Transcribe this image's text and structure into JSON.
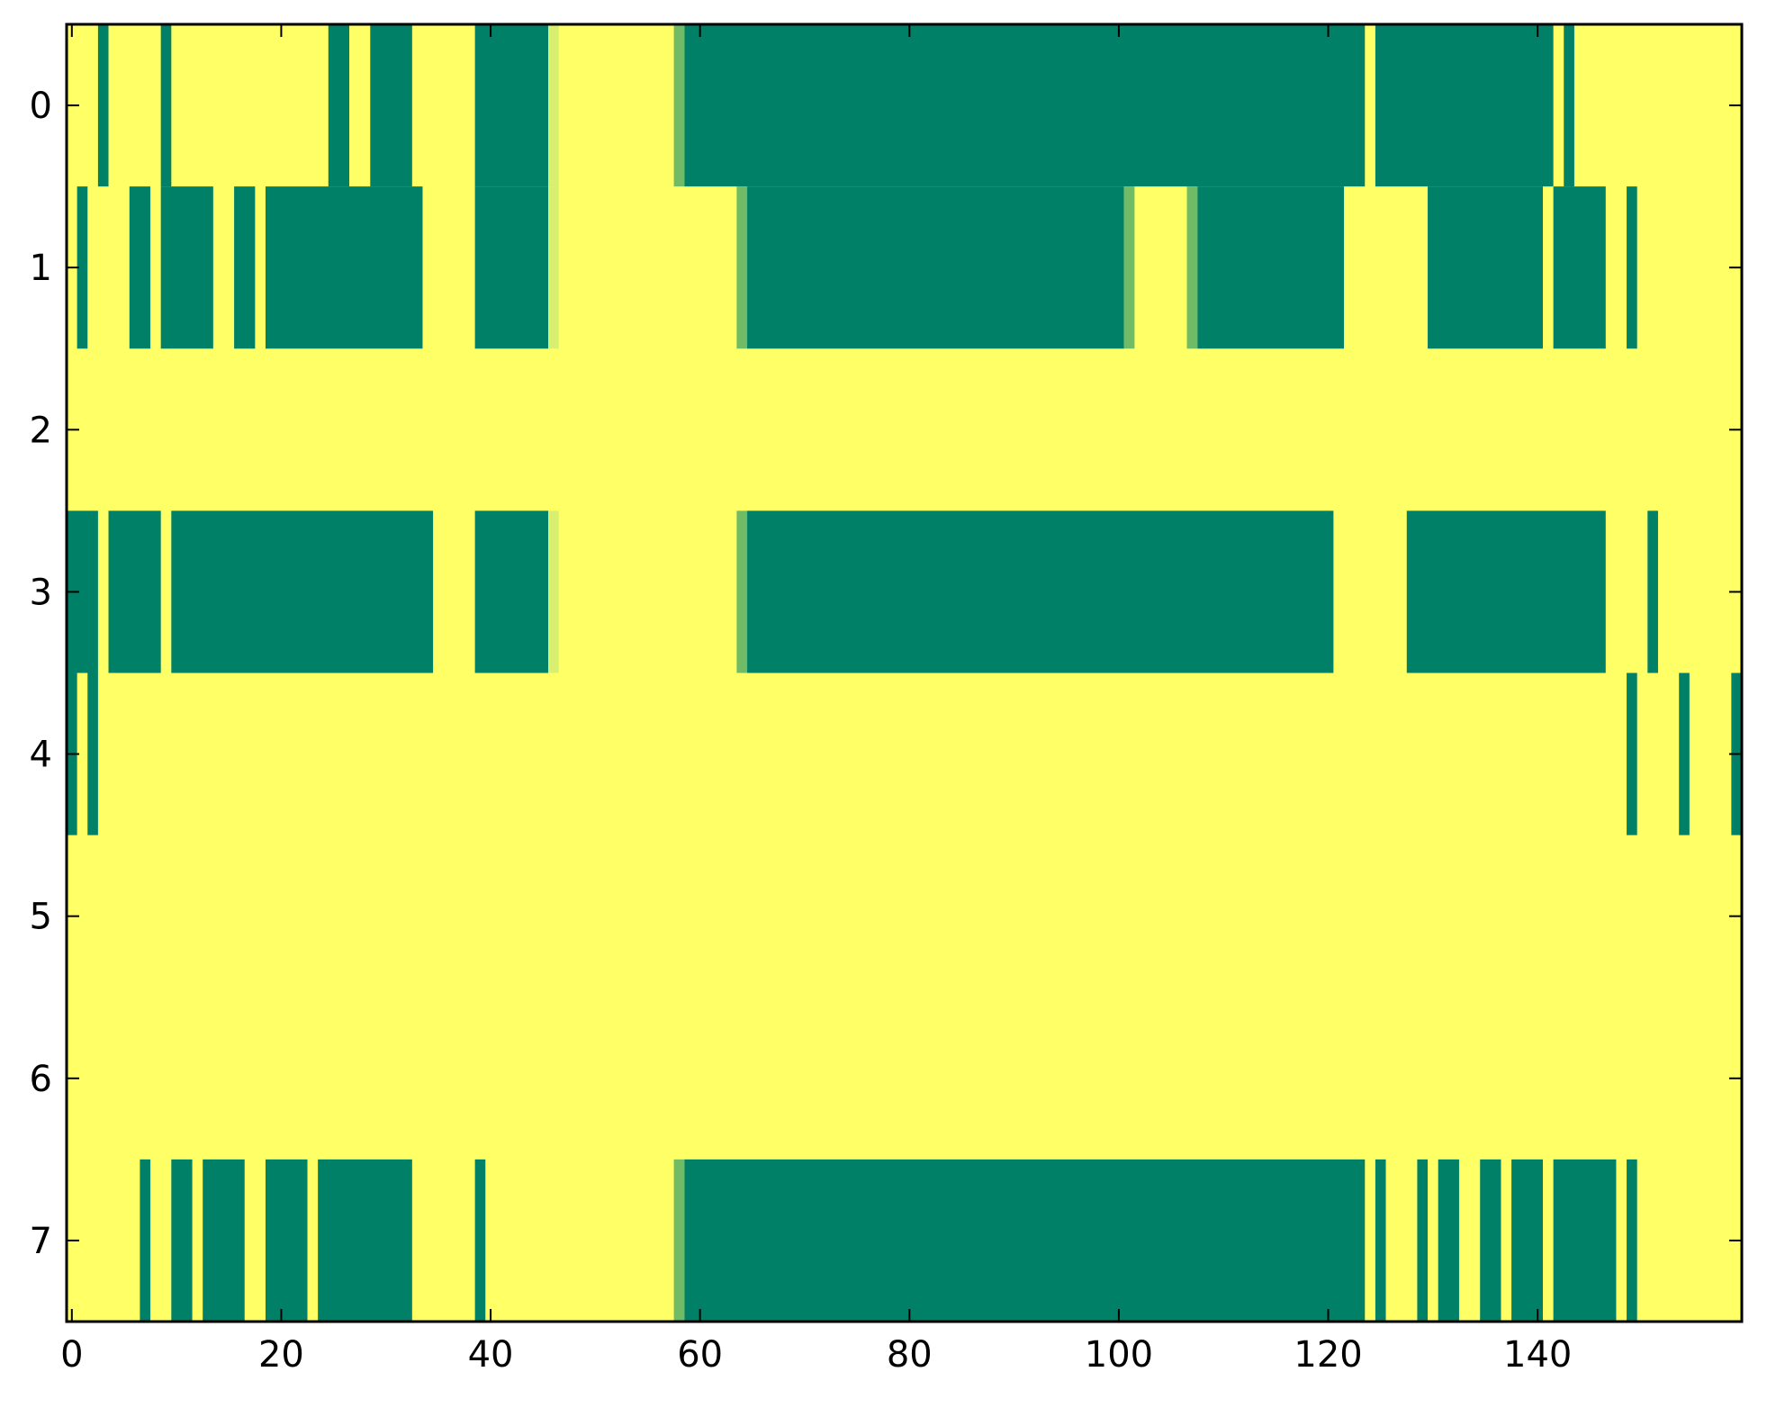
{
  "chart_data": {
    "type": "heatmap",
    "title": "",
    "xlabel": "",
    "ylabel": "",
    "xlim": [
      -0.5,
      159.5
    ],
    "ylim": [
      7.5,
      -0.5
    ],
    "xticks": [
      0,
      20,
      40,
      60,
      80,
      100,
      120,
      140
    ],
    "xtick_labels": [
      "0",
      "20",
      "40",
      "60",
      "80",
      "100",
      "120",
      "140"
    ],
    "yticks": [
      0,
      1,
      2,
      3,
      4,
      5,
      6,
      7
    ],
    "ytick_labels": [
      "0",
      "1",
      "2",
      "3",
      "4",
      "5",
      "6",
      "7"
    ],
    "n_columns": 160,
    "n_rows": 8,
    "grid": false,
    "legend": "none",
    "colors": {
      "low": "#ffff66",
      "high": "#008066",
      "mid_light": "#d9ef70",
      "mid_dark": "#6fbb66",
      "background": "#ffffff",
      "axis": "#000000"
    },
    "rows": [
      {
        "row": 0,
        "high_runs": [
          [
            3,
            3
          ],
          [
            9,
            9
          ],
          [
            25,
            26
          ],
          [
            29,
            32
          ],
          [
            39,
            45
          ],
          [
            59,
            123
          ],
          [
            125,
            141
          ],
          [
            143,
            143
          ]
        ],
        "mid_cells": [
          {
            "col": 46,
            "level": "light"
          },
          {
            "col": 58,
            "level": "dark"
          }
        ]
      },
      {
        "row": 1,
        "high_runs": [
          [
            1,
            1
          ],
          [
            6,
            7
          ],
          [
            9,
            13
          ],
          [
            16,
            17
          ],
          [
            19,
            33
          ],
          [
            39,
            45
          ],
          [
            65,
            100
          ],
          [
            108,
            121
          ],
          [
            130,
            140
          ],
          [
            142,
            146
          ],
          [
            149,
            149
          ]
        ],
        "mid_cells": [
          {
            "col": 46,
            "level": "light"
          },
          {
            "col": 64,
            "level": "dark"
          },
          {
            "col": 101,
            "level": "dark"
          },
          {
            "col": 107,
            "level": "dark"
          }
        ]
      },
      {
        "row": 2,
        "high_runs": [],
        "mid_cells": []
      },
      {
        "row": 3,
        "high_runs": [
          [
            -0.5,
            2
          ],
          [
            4,
            8
          ],
          [
            10,
            34
          ],
          [
            39,
            45
          ],
          [
            65,
            120
          ],
          [
            128,
            146
          ],
          [
            151,
            151
          ]
        ],
        "mid_cells": [
          {
            "col": 46,
            "level": "light"
          },
          {
            "col": 64,
            "level": "dark"
          }
        ]
      },
      {
        "row": 4,
        "high_runs": [
          [
            -0.5,
            0
          ],
          [
            2,
            2
          ],
          [
            149,
            149
          ],
          [
            154,
            154
          ],
          [
            159,
            159.5
          ]
        ],
        "mid_cells": []
      },
      {
        "row": 5,
        "high_runs": [],
        "mid_cells": []
      },
      {
        "row": 6,
        "high_runs": [],
        "mid_cells": []
      },
      {
        "row": 7,
        "high_runs": [
          [
            7,
            7
          ],
          [
            10,
            11
          ],
          [
            13,
            16
          ],
          [
            19,
            22
          ],
          [
            24,
            32
          ],
          [
            39,
            39
          ],
          [
            59,
            123
          ],
          [
            125,
            125
          ],
          [
            129,
            129
          ],
          [
            131,
            132
          ],
          [
            135,
            136
          ],
          [
            138,
            140
          ],
          [
            142,
            147
          ],
          [
            149,
            149
          ]
        ],
        "mid_cells": [
          {
            "col": 58,
            "level": "dark"
          }
        ]
      }
    ]
  }
}
